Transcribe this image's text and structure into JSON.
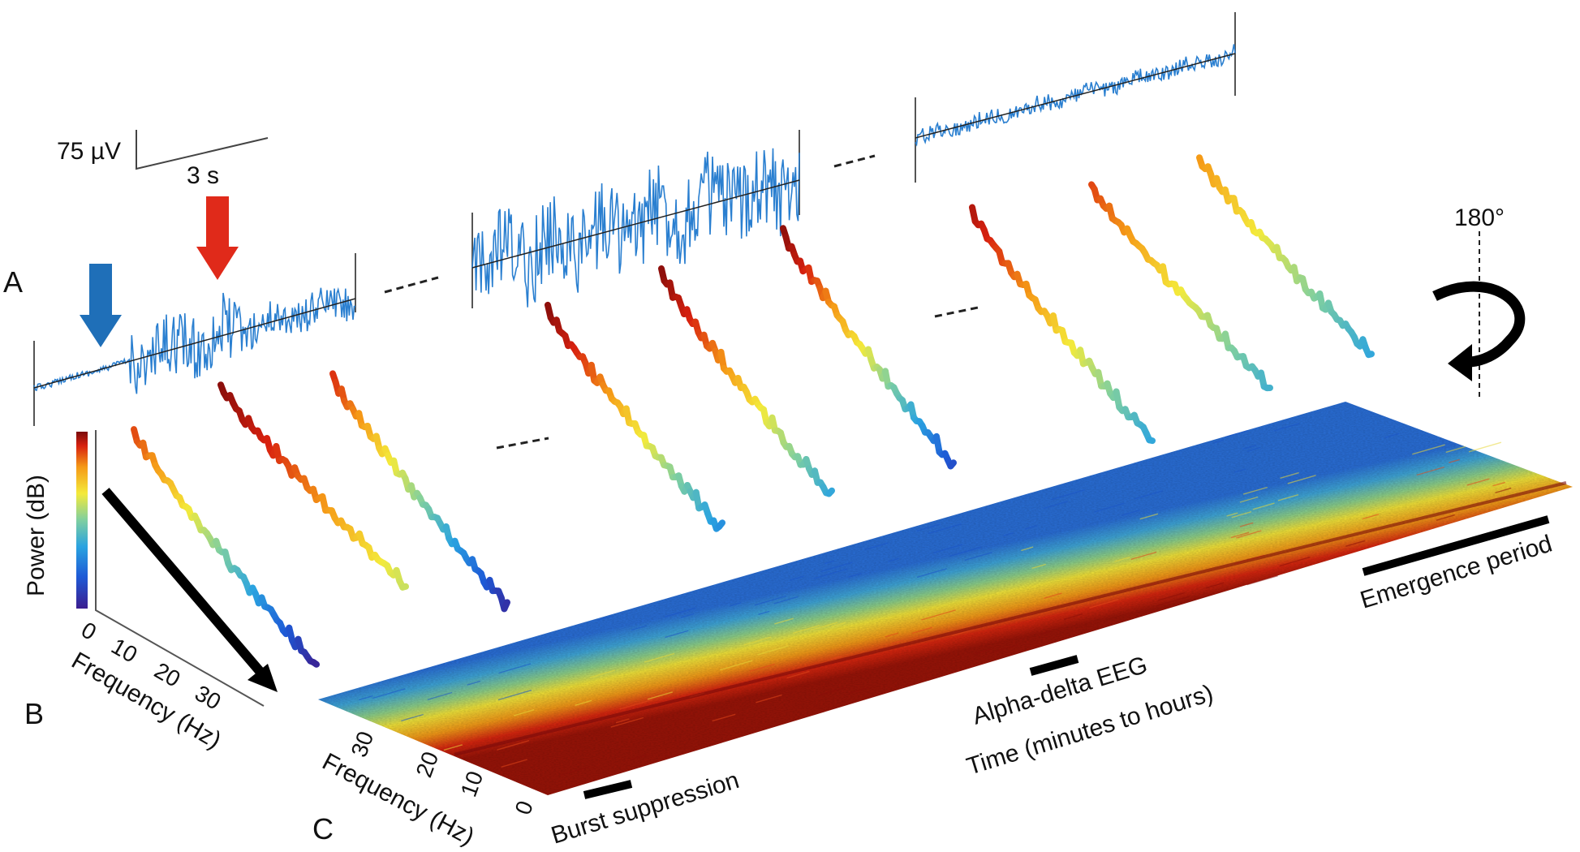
{
  "panels": {
    "a": "A",
    "b": "B",
    "c": "C"
  },
  "scale_bar": {
    "amplitude": "75 µV",
    "duration": "3 s"
  },
  "rotation": {
    "label": "180°"
  },
  "power_axis": {
    "label": "Power (dB)"
  },
  "panel_b_axis": {
    "label": "Frequency (Hz)",
    "ticks": [
      "0",
      "10",
      "20",
      "30"
    ]
  },
  "spectrogram_axes": {
    "freq_label": "Frequency (Hz)",
    "freq_ticks": [
      "0",
      "10",
      "20",
      "30"
    ],
    "time_label": "Time (minutes to hours)"
  },
  "periods": {
    "burst": "Burst suppression",
    "alpha": "Alpha-delta EEG",
    "emergence": "Emergence period"
  },
  "colors": {
    "trace": "#2a7fd0",
    "trend": "#222222",
    "arrow_blue": "#1f6fb8",
    "arrow_red": "#e02a1a",
    "colormap": [
      "#3b1d8f",
      "#1e5ad6",
      "#2aa3e0",
      "#7fcfa0",
      "#f4ea3a",
      "#f59a17",
      "#d8210f",
      "#7a0a0a"
    ]
  }
}
